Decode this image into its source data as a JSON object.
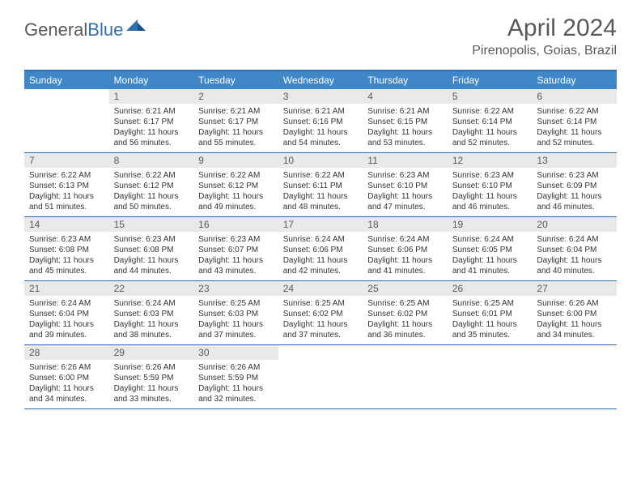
{
  "brand": {
    "general": "General",
    "blue": "Blue"
  },
  "title": "April 2024",
  "location": "Pirenopolis, Goias, Brazil",
  "colors": {
    "header_bg": "#3f87c7",
    "rule": "#2f6faf",
    "daynum_bg": "#e9e9e9",
    "text_muted": "#595959",
    "text_body": "#333333"
  },
  "weekdays": [
    "Sunday",
    "Monday",
    "Tuesday",
    "Wednesday",
    "Thursday",
    "Friday",
    "Saturday"
  ],
  "weeks": [
    [
      null,
      {
        "n": "1",
        "sr": "Sunrise: 6:21 AM",
        "ss": "Sunset: 6:17 PM",
        "d1": "Daylight: 11 hours",
        "d2": "and 56 minutes."
      },
      {
        "n": "2",
        "sr": "Sunrise: 6:21 AM",
        "ss": "Sunset: 6:17 PM",
        "d1": "Daylight: 11 hours",
        "d2": "and 55 minutes."
      },
      {
        "n": "3",
        "sr": "Sunrise: 6:21 AM",
        "ss": "Sunset: 6:16 PM",
        "d1": "Daylight: 11 hours",
        "d2": "and 54 minutes."
      },
      {
        "n": "4",
        "sr": "Sunrise: 6:21 AM",
        "ss": "Sunset: 6:15 PM",
        "d1": "Daylight: 11 hours",
        "d2": "and 53 minutes."
      },
      {
        "n": "5",
        "sr": "Sunrise: 6:22 AM",
        "ss": "Sunset: 6:14 PM",
        "d1": "Daylight: 11 hours",
        "d2": "and 52 minutes."
      },
      {
        "n": "6",
        "sr": "Sunrise: 6:22 AM",
        "ss": "Sunset: 6:14 PM",
        "d1": "Daylight: 11 hours",
        "d2": "and 52 minutes."
      }
    ],
    [
      {
        "n": "7",
        "sr": "Sunrise: 6:22 AM",
        "ss": "Sunset: 6:13 PM",
        "d1": "Daylight: 11 hours",
        "d2": "and 51 minutes."
      },
      {
        "n": "8",
        "sr": "Sunrise: 6:22 AM",
        "ss": "Sunset: 6:12 PM",
        "d1": "Daylight: 11 hours",
        "d2": "and 50 minutes."
      },
      {
        "n": "9",
        "sr": "Sunrise: 6:22 AM",
        "ss": "Sunset: 6:12 PM",
        "d1": "Daylight: 11 hours",
        "d2": "and 49 minutes."
      },
      {
        "n": "10",
        "sr": "Sunrise: 6:22 AM",
        "ss": "Sunset: 6:11 PM",
        "d1": "Daylight: 11 hours",
        "d2": "and 48 minutes."
      },
      {
        "n": "11",
        "sr": "Sunrise: 6:23 AM",
        "ss": "Sunset: 6:10 PM",
        "d1": "Daylight: 11 hours",
        "d2": "and 47 minutes."
      },
      {
        "n": "12",
        "sr": "Sunrise: 6:23 AM",
        "ss": "Sunset: 6:10 PM",
        "d1": "Daylight: 11 hours",
        "d2": "and 46 minutes."
      },
      {
        "n": "13",
        "sr": "Sunrise: 6:23 AM",
        "ss": "Sunset: 6:09 PM",
        "d1": "Daylight: 11 hours",
        "d2": "and 46 minutes."
      }
    ],
    [
      {
        "n": "14",
        "sr": "Sunrise: 6:23 AM",
        "ss": "Sunset: 6:08 PM",
        "d1": "Daylight: 11 hours",
        "d2": "and 45 minutes."
      },
      {
        "n": "15",
        "sr": "Sunrise: 6:23 AM",
        "ss": "Sunset: 6:08 PM",
        "d1": "Daylight: 11 hours",
        "d2": "and 44 minutes."
      },
      {
        "n": "16",
        "sr": "Sunrise: 6:23 AM",
        "ss": "Sunset: 6:07 PM",
        "d1": "Daylight: 11 hours",
        "d2": "and 43 minutes."
      },
      {
        "n": "17",
        "sr": "Sunrise: 6:24 AM",
        "ss": "Sunset: 6:06 PM",
        "d1": "Daylight: 11 hours",
        "d2": "and 42 minutes."
      },
      {
        "n": "18",
        "sr": "Sunrise: 6:24 AM",
        "ss": "Sunset: 6:06 PM",
        "d1": "Daylight: 11 hours",
        "d2": "and 41 minutes."
      },
      {
        "n": "19",
        "sr": "Sunrise: 6:24 AM",
        "ss": "Sunset: 6:05 PM",
        "d1": "Daylight: 11 hours",
        "d2": "and 41 minutes."
      },
      {
        "n": "20",
        "sr": "Sunrise: 6:24 AM",
        "ss": "Sunset: 6:04 PM",
        "d1": "Daylight: 11 hours",
        "d2": "and 40 minutes."
      }
    ],
    [
      {
        "n": "21",
        "sr": "Sunrise: 6:24 AM",
        "ss": "Sunset: 6:04 PM",
        "d1": "Daylight: 11 hours",
        "d2": "and 39 minutes."
      },
      {
        "n": "22",
        "sr": "Sunrise: 6:24 AM",
        "ss": "Sunset: 6:03 PM",
        "d1": "Daylight: 11 hours",
        "d2": "and 38 minutes."
      },
      {
        "n": "23",
        "sr": "Sunrise: 6:25 AM",
        "ss": "Sunset: 6:03 PM",
        "d1": "Daylight: 11 hours",
        "d2": "and 37 minutes."
      },
      {
        "n": "24",
        "sr": "Sunrise: 6:25 AM",
        "ss": "Sunset: 6:02 PM",
        "d1": "Daylight: 11 hours",
        "d2": "and 37 minutes."
      },
      {
        "n": "25",
        "sr": "Sunrise: 6:25 AM",
        "ss": "Sunset: 6:02 PM",
        "d1": "Daylight: 11 hours",
        "d2": "and 36 minutes."
      },
      {
        "n": "26",
        "sr": "Sunrise: 6:25 AM",
        "ss": "Sunset: 6:01 PM",
        "d1": "Daylight: 11 hours",
        "d2": "and 35 minutes."
      },
      {
        "n": "27",
        "sr": "Sunrise: 6:26 AM",
        "ss": "Sunset: 6:00 PM",
        "d1": "Daylight: 11 hours",
        "d2": "and 34 minutes."
      }
    ],
    [
      {
        "n": "28",
        "sr": "Sunrise: 6:26 AM",
        "ss": "Sunset: 6:00 PM",
        "d1": "Daylight: 11 hours",
        "d2": "and 34 minutes."
      },
      {
        "n": "29",
        "sr": "Sunrise: 6:26 AM",
        "ss": "Sunset: 5:59 PM",
        "d1": "Daylight: 11 hours",
        "d2": "and 33 minutes."
      },
      {
        "n": "30",
        "sr": "Sunrise: 6:26 AM",
        "ss": "Sunset: 5:59 PM",
        "d1": "Daylight: 11 hours",
        "d2": "and 32 minutes."
      },
      null,
      null,
      null,
      null
    ]
  ]
}
